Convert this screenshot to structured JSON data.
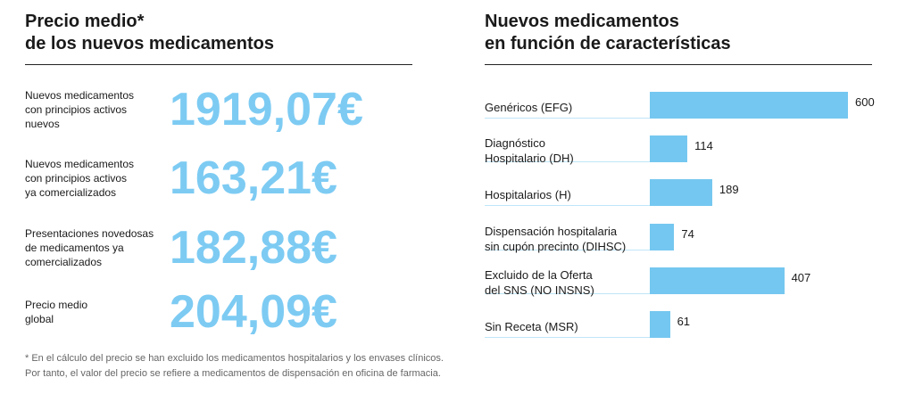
{
  "stats": {
    "title": "Precio medio*\nde los nuevos medicamentos",
    "items": [
      {
        "label": "Nuevos medicamentos\ncon principios activos\nnuevos",
        "value": "1919,07€"
      },
      {
        "label": "Nuevos medicamentos\ncon principios activos\nya comercializados",
        "value": "163,21€"
      },
      {
        "label": "Presentaciones novedosas\nde medicamentos ya\ncomercializados",
        "value": "182,88€"
      },
      {
        "label": "Precio medio\nglobal",
        "value": "204,09€"
      }
    ],
    "footnote": "* En el cálculo del precio se han excluido los medicamentos hospitalarios y los envases clínicos.\nPor tanto, el valor del precio se refiere a medicamentos de dispensación en oficina de farmacia."
  },
  "chart_data": {
    "type": "hbar",
    "title": "Nuevos medicamentos\nen función de características",
    "categories": [
      "Genéricos (EFG)",
      "Diagnóstico\nHospitalario (DH)",
      "Hospitalarios (H)",
      "Dispensación hospitalaria\nsin cupón precinto (DIHSC)",
      "Excluido de la Oferta\ndel SNS (NO INSNS)",
      "Sin Receta (MSR)"
    ],
    "values": [
      600,
      114,
      189,
      74,
      407,
      61
    ],
    "color": "#74c7f0"
  }
}
